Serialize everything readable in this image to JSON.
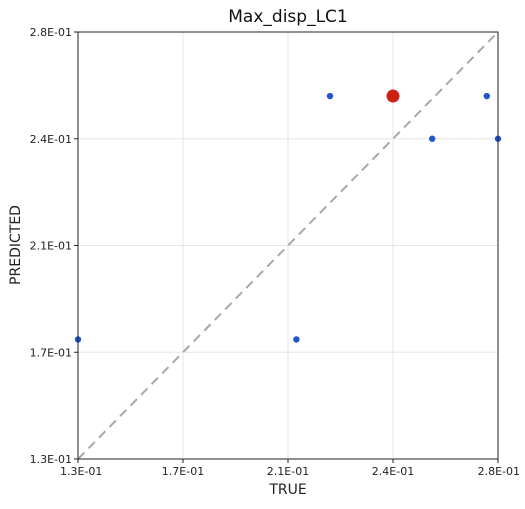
{
  "chart_data": {
    "type": "scatter",
    "title": "Max_disp_LC1",
    "xlabel": "TRUE",
    "ylabel": "PREDICTED",
    "xlim": [
      0.13,
      0.28
    ],
    "ylim": [
      0.13,
      0.28
    ],
    "x_ticks": [
      {
        "value": 0.13,
        "label": "1.3E-01"
      },
      {
        "value": 0.1675,
        "label": "1.7E-01"
      },
      {
        "value": 0.205,
        "label": "2.1E-01"
      },
      {
        "value": 0.2425,
        "label": "2.4E-01"
      },
      {
        "value": 0.28,
        "label": "2.8E-01"
      }
    ],
    "y_ticks": [
      {
        "value": 0.13,
        "label": "1.3E-01"
      },
      {
        "value": 0.1675,
        "label": "1.7E-01"
      },
      {
        "value": 0.205,
        "label": "2.1E-01"
      },
      {
        "value": 0.2425,
        "label": "2.4E-01"
      },
      {
        "value": 0.28,
        "label": "2.8E-01"
      }
    ],
    "grid": true,
    "reference_line": {
      "type": "y=x",
      "style": "dashed",
      "color": "#a8a8a8"
    },
    "series": [
      {
        "color": "#2255cc",
        "marker": "small-circle",
        "points": [
          {
            "x": 0.13,
            "y": 0.172
          },
          {
            "x": 0.208,
            "y": 0.172
          },
          {
            "x": 0.22,
            "y": 0.2575
          },
          {
            "x": 0.2565,
            "y": 0.2425
          },
          {
            "x": 0.276,
            "y": 0.2575
          },
          {
            "x": 0.28,
            "y": 0.2425
          }
        ]
      },
      {
        "color": "#cc2211",
        "marker": "large-circle",
        "points": [
          {
            "x": 0.2425,
            "y": 0.2575
          }
        ]
      }
    ]
  }
}
